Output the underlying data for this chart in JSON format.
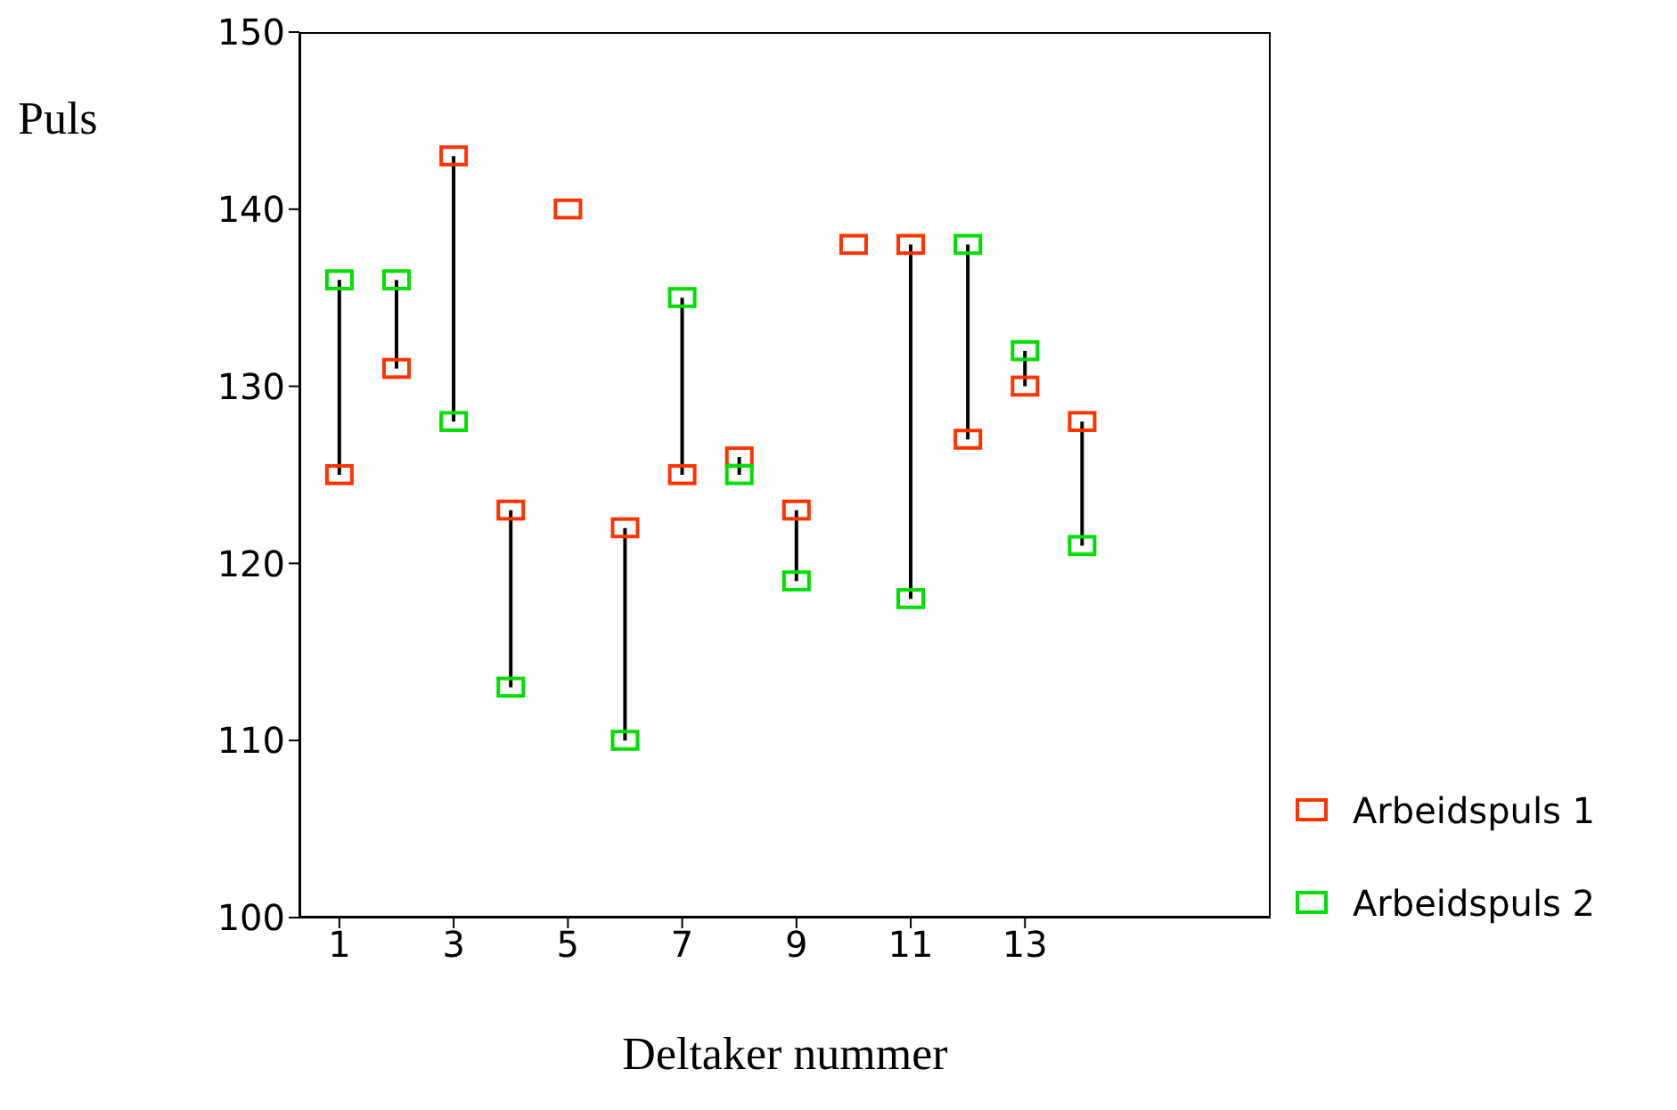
{
  "chart_data": {
    "type": "scatter",
    "xlabel": "Deltaker nummer",
    "ylabel": "Puls",
    "x": [
      1,
      2,
      3,
      4,
      5,
      6,
      7,
      8,
      9,
      10,
      11,
      12,
      13,
      14
    ],
    "xlim": [
      0.3,
      17.3
    ],
    "xticks": [
      1,
      3,
      5,
      7,
      9,
      11,
      13
    ],
    "series": [
      {
        "type": "bar",
        "color": "#000000",
        "base": [
          125,
          131,
          128,
          113,
          null,
          110,
          125,
          125,
          119,
          null,
          118,
          127,
          130,
          121
        ],
        "values": [
          11,
          5,
          15,
          10,
          null,
          12,
          10,
          1,
          4,
          null,
          20,
          11,
          2,
          7
        ]
      },
      {
        "name": "Arbeidspuls 1",
        "color": "#ff3300",
        "values": [
          125,
          131,
          143,
          123,
          140,
          122,
          125,
          126,
          123,
          138,
          138,
          127,
          130,
          128
        ]
      },
      {
        "name": "Arbeidspuls 2",
        "color": "#00dd00",
        "values": [
          136,
          136,
          128,
          113,
          null,
          110,
          135,
          125,
          119,
          null,
          118,
          138,
          132,
          121
        ]
      }
    ],
    "ylim": [
      100,
      150
    ],
    "yticks": [
      100,
      110,
      120,
      130,
      140,
      150
    ],
    "grid": false,
    "legend": "right",
    "marker": "square"
  }
}
